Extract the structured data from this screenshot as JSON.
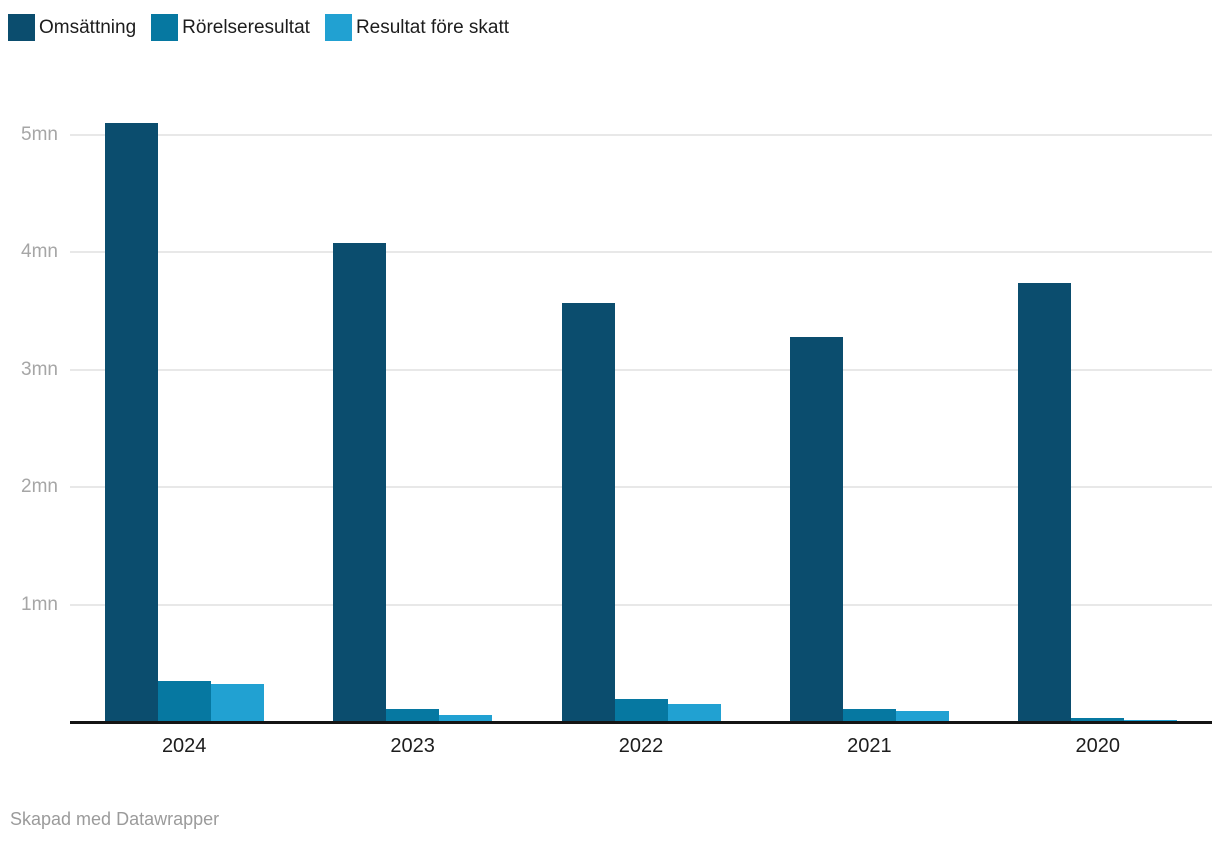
{
  "chart_data": {
    "type": "bar",
    "title": "",
    "xlabel": "",
    "ylabel": "",
    "categories": [
      "2024",
      "2023",
      "2022",
      "2021",
      "2020"
    ],
    "series": [
      {
        "name": "Omsättning",
        "color": "#0b4d6e",
        "values": [
          5.1,
          4.08,
          3.57,
          3.28,
          3.74
        ]
      },
      {
        "name": "Rörelseresultat",
        "color": "#0678a1",
        "values": [
          0.35,
          0.11,
          0.2,
          0.11,
          0.03
        ]
      },
      {
        "name": "Resultat före skatt",
        "color": "#21a1d2",
        "values": [
          0.32,
          0.06,
          0.15,
          0.09,
          0.02
        ]
      }
    ],
    "yticks": [
      {
        "value": 1,
        "label": "1mn"
      },
      {
        "value": 2,
        "label": "2mn"
      },
      {
        "value": 3,
        "label": "3mn"
      },
      {
        "value": 4,
        "label": "4mn"
      },
      {
        "value": 5,
        "label": "5mn"
      }
    ],
    "ylim": [
      0,
      5.3
    ],
    "grid": "horizontal",
    "legend_position": "top-left",
    "unit": "mn"
  },
  "caption": {
    "text": "Skapad med Datawrapper"
  },
  "colors": {
    "background": "#ffffff",
    "gridline": "#e8e8e8",
    "baseline": "#141414",
    "ytick_text": "#a6a6a6",
    "xtick_text": "#1d1d1d",
    "legend_text": "#1d1d1d",
    "caption_text": "#9b9b9b"
  }
}
